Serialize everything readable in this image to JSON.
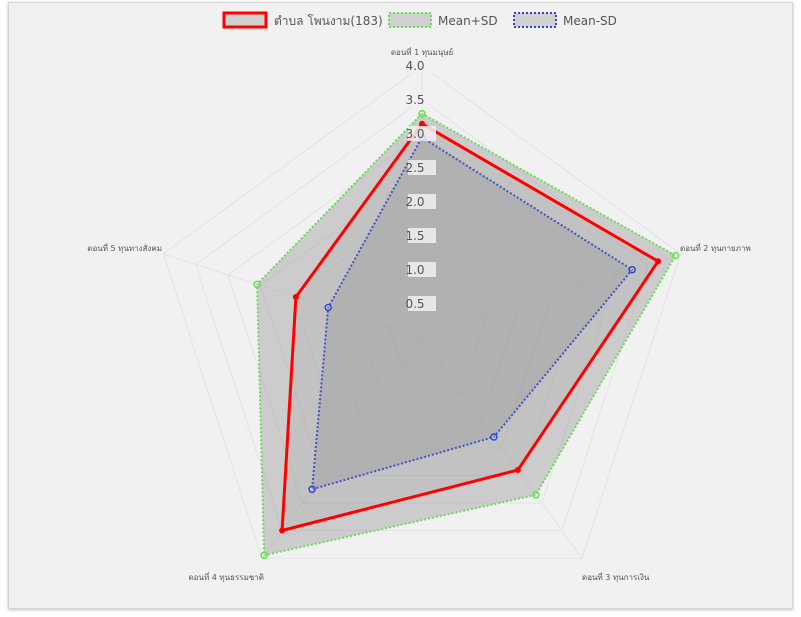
{
  "chart_data": {
    "type": "radar",
    "axes": [
      "ดอนที่ 1 ทุนมนุษย์",
      "ดอนที่ 2 ทุนกายภาพ",
      "ดอนที่ 3 ทุนการเงิน",
      "ดอนที่ 4 ทุนธรรมชาติ",
      "ดอนที่ 5 ทุนทางสังคม"
    ],
    "ticks": [
      "0.5",
      "1.0",
      "1.5",
      "2.0",
      "2.5",
      "3.0",
      "3.5",
      "4.0"
    ],
    "rlim": [
      0,
      4
    ],
    "grid": true,
    "legend_position": "top",
    "series": [
      {
        "name": "ตำบล โพนงาม(183)",
        "values": [
          3.15,
          3.65,
          2.4,
          3.5,
          1.95
        ],
        "color": "#ff0000",
        "line": "solid"
      },
      {
        "name": "Mean+SD",
        "values": [
          3.3,
          3.92,
          2.85,
          3.95,
          2.55
        ],
        "color": "#66dd55",
        "line": "dotted"
      },
      {
        "name": "Mean-SD",
        "values": [
          2.95,
          3.25,
          1.8,
          2.75,
          1.45
        ],
        "color": "#3344cc",
        "line": "dotted"
      }
    ]
  }
}
